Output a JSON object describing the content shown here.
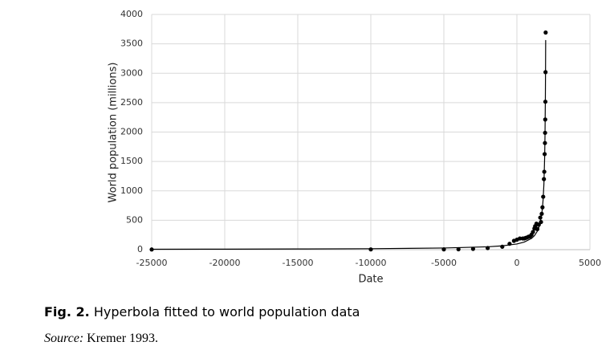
{
  "chart_data": {
    "type": "scatter",
    "x_label": "Date",
    "y_label": "World population (millions)",
    "xlim": [
      -25000,
      5000
    ],
    "xticks": [
      -25000,
      -20000,
      -15000,
      -10000,
      -5000,
      0,
      5000
    ],
    "ylim": [
      0,
      4000
    ],
    "yticks": [
      0,
      500,
      1000,
      1500,
      2000,
      2500,
      3000,
      3500,
      4000
    ],
    "grid": true,
    "series": [
      {
        "type": "scatter",
        "color": "#000000",
        "x": [
          -25000,
          -10000,
          -5000,
          -4000,
          -3000,
          -2000,
          -1000,
          -500,
          -200,
          1,
          200,
          400,
          500,
          600,
          700,
          800,
          900,
          1000,
          1100,
          1200,
          1250,
          1300,
          1340,
          1400,
          1500,
          1600,
          1650,
          1700,
          1750,
          1800,
          1850,
          1875,
          1900,
          1920,
          1930,
          1940,
          1950,
          1960,
          1970
        ],
        "values": [
          3,
          4,
          5,
          7,
          14,
          27,
          50,
          100,
          150,
          170,
          190,
          190,
          190,
          200,
          207,
          220,
          226,
          254,
          301,
          360,
          400,
          360,
          443,
          350,
          425,
          545,
          470,
          610,
          720,
          900,
          1200,
          1325,
          1625,
          1813,
          1987,
          2213,
          2516,
          3019,
          3693
        ]
      },
      {
        "type": "line",
        "color": "#000000",
        "x": [
          -25000,
          -20000,
          -15000,
          -10000,
          -5000,
          -2000,
          -1000,
          0,
          500,
          1000,
          1200,
          1400,
          1500,
          1600,
          1700,
          1750,
          1800,
          1850,
          1900,
          1925,
          1950,
          1960,
          1970
        ],
        "values": [
          7.3,
          8.9,
          11.5,
          16.3,
          27.9,
          48.7,
          64.8,
          96.8,
          128.5,
          191.2,
          237.6,
          313.6,
          373.3,
          461.2,
          603.1,
          712.7,
          871.1,
          1120,
          1568,
          1960,
          2613,
          3015,
          3564
        ]
      }
    ]
  },
  "caption": {
    "label": "Fig. 2.",
    "text": "Hyperbola fitted to world population data"
  },
  "source": {
    "label": "Source:",
    "text": "Kremer 1993."
  }
}
